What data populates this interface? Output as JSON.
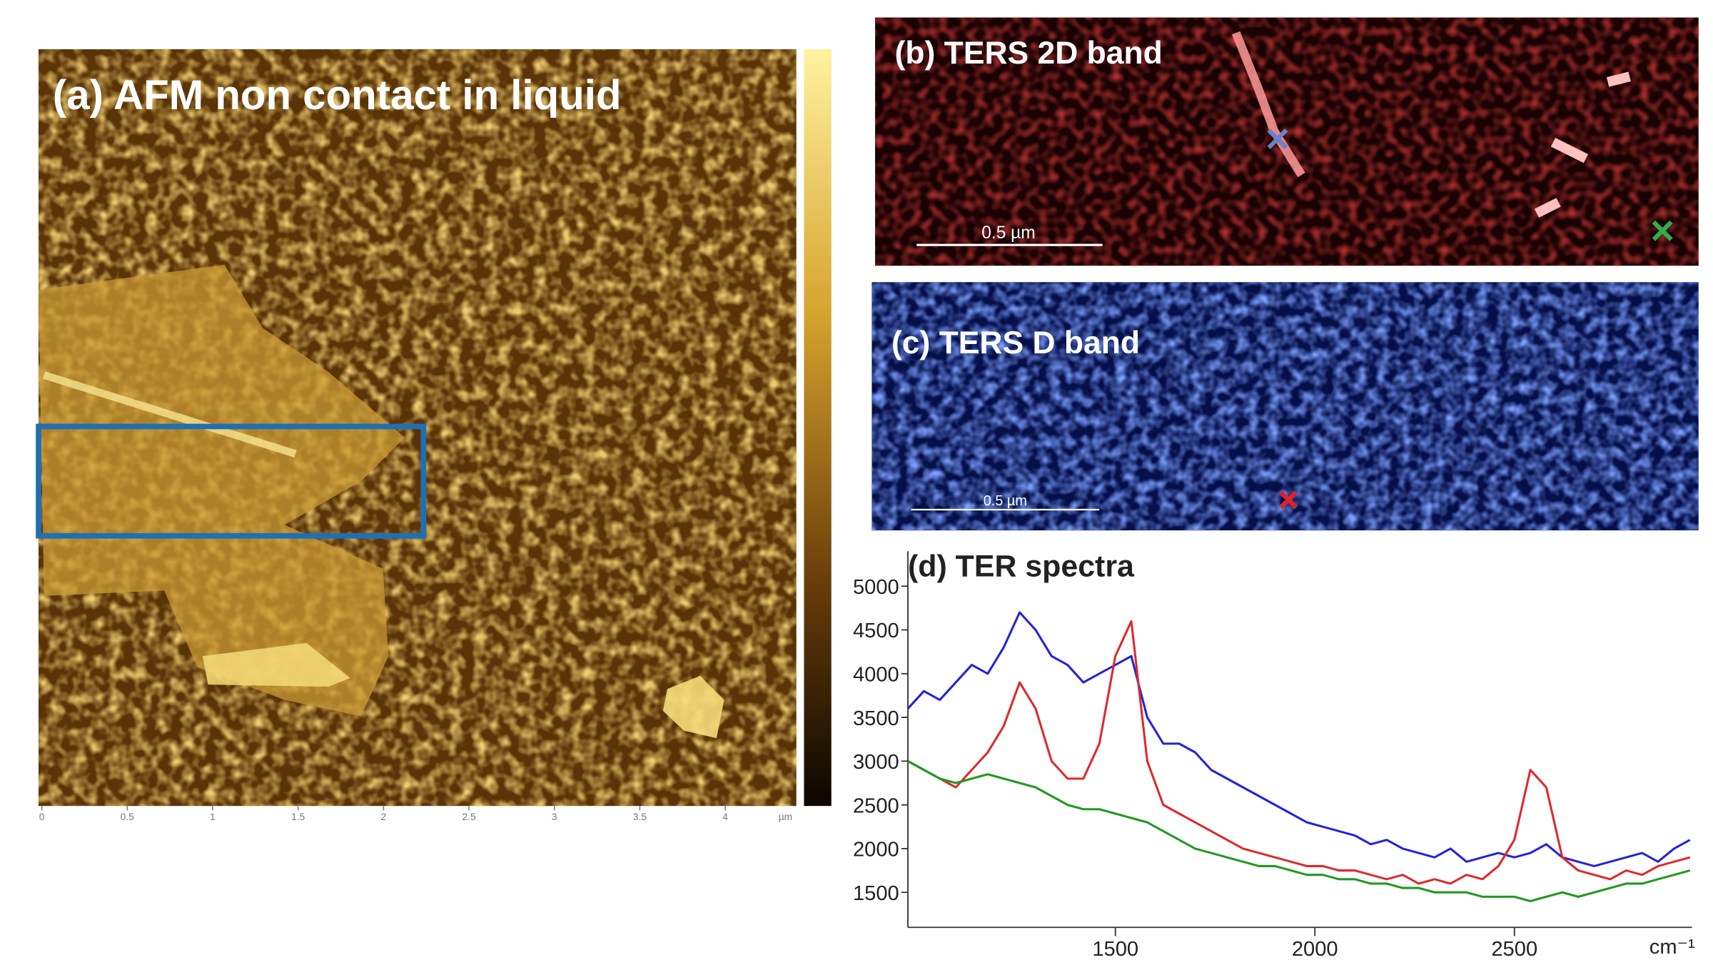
{
  "panels": [
    {
      "title": "(a) AFM non contact in liquid",
      "xlim": [
        0,
        4.4
      ],
      "xticks": [
        0,
        0.5,
        1,
        1.5,
        2,
        2.5,
        3,
        3.5,
        4
      ],
      "x_unit": "µm"
    },
    {
      "title": "(b) TERS 2D band",
      "scale_bar": "0.5 µm"
    },
    {
      "title": "(c) TERS D band",
      "scale_bar": "0.5 µm"
    }
  ],
  "chart_data": {
    "type": "line",
    "title": "(d) TER spectra",
    "x_label": "cm⁻¹",
    "x": [
      980,
      1020,
      1060,
      1100,
      1140,
      1180,
      1220,
      1260,
      1300,
      1340,
      1380,
      1420,
      1460,
      1500,
      1540,
      1580,
      1620,
      1660,
      1700,
      1740,
      1780,
      1820,
      1860,
      1900,
      1940,
      1980,
      2020,
      2060,
      2100,
      2140,
      2180,
      2220,
      2260,
      2300,
      2340,
      2380,
      2420,
      2460,
      2500,
      2540,
      2580,
      2620,
      2660,
      2700,
      2740,
      2780,
      2820,
      2860,
      2900,
      2940
    ],
    "series": [
      {
        "color": "#2222dd",
        "values": [
          3600,
          3800,
          3700,
          3900,
          4100,
          4000,
          4300,
          4700,
          4500,
          4200,
          4100,
          3900,
          4000,
          4100,
          4200,
          3500,
          3200,
          3200,
          3100,
          2900,
          2800,
          2700,
          2600,
          2500,
          2400,
          2300,
          2250,
          2200,
          2150,
          2050,
          2100,
          2000,
          1950,
          1900,
          2000,
          1850,
          1900,
          1950,
          1900,
          1950,
          2050,
          1900,
          1850,
          1800,
          1850,
          1900,
          1950,
          1850,
          2000,
          2100
        ]
      },
      {
        "color": "#dd2a2a",
        "values": [
          3000,
          2900,
          2800,
          2700,
          2900,
          3100,
          3400,
          3900,
          3600,
          3000,
          2800,
          2800,
          3200,
          4200,
          4600,
          3000,
          2500,
          2400,
          2300,
          2200,
          2100,
          2000,
          1950,
          1900,
          1850,
          1800,
          1800,
          1750,
          1750,
          1700,
          1650,
          1700,
          1600,
          1650,
          1600,
          1700,
          1650,
          1800,
          2100,
          2900,
          2700,
          1900,
          1750,
          1700,
          1650,
          1750,
          1700,
          1800,
          1850,
          1900
        ]
      },
      {
        "color": "#1f9a1f",
        "values": [
          3000,
          2900,
          2800,
          2750,
          2800,
          2850,
          2800,
          2750,
          2700,
          2600,
          2500,
          2450,
          2450,
          2400,
          2350,
          2300,
          2200,
          2100,
          2000,
          1950,
          1900,
          1850,
          1800,
          1800,
          1750,
          1700,
          1700,
          1650,
          1650,
          1600,
          1600,
          1550,
          1550,
          1500,
          1500,
          1500,
          1450,
          1450,
          1450,
          1400,
          1450,
          1500,
          1450,
          1500,
          1550,
          1600,
          1600,
          1650,
          1700,
          1750
        ]
      }
    ],
    "xlim": [
      980,
      2945
    ],
    "xticks": [
      1500,
      2000,
      2500
    ],
    "ylim": [
      1100,
      5400
    ],
    "yticks": [
      1500,
      2000,
      2500,
      3000,
      3500,
      4000,
      4500,
      5000
    ]
  }
}
